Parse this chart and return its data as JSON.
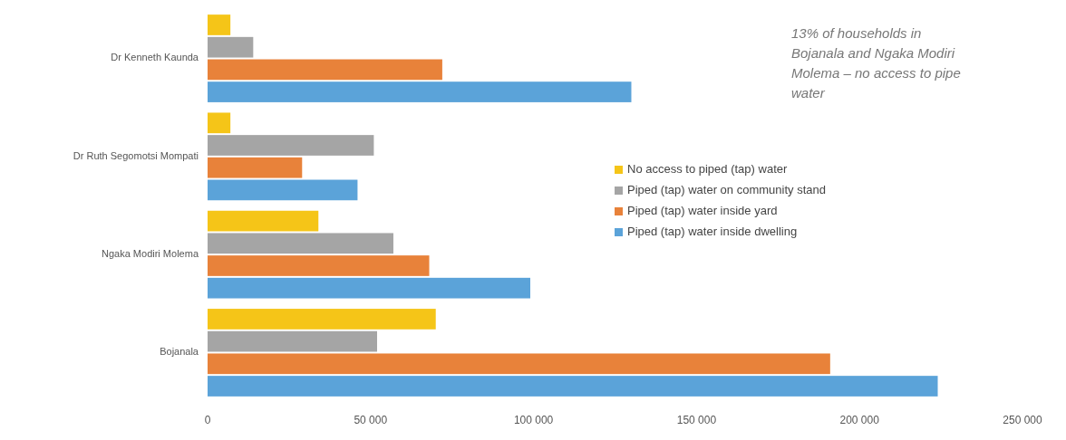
{
  "chart_data": {
    "type": "bar",
    "orientation": "horizontal",
    "categories": [
      "Dr Kenneth Kaunda",
      "Dr Ruth Segomotsi Mompati",
      "Ngaka Modiri Molema",
      "Bojanala"
    ],
    "series": [
      {
        "name": "No access to piped (tap) water",
        "color": "#f5c518",
        "values": [
          7000,
          7000,
          34000,
          70000
        ]
      },
      {
        "name": "Piped (tap) water on community stand",
        "color": "#a5a5a5",
        "values": [
          14000,
          51000,
          57000,
          52000
        ]
      },
      {
        "name": "Piped (tap) water inside yard",
        "color": "#e8823a",
        "values": [
          72000,
          29000,
          68000,
          191000
        ]
      },
      {
        "name": "Piped (tap) water inside dwelling",
        "color": "#5ba3d9",
        "values": [
          130000,
          46000,
          99000,
          224000
        ]
      }
    ],
    "xlim": [
      0,
      250000
    ],
    "xticks": [
      0,
      {
        "value": 50000,
        "label": "50 000"
      },
      {
        "value": 100000,
        "label": "100 000"
      },
      {
        "value": 150000,
        "label": "150 000"
      },
      {
        "value": 200000,
        "label": "200 000"
      },
      {
        "value": 250000,
        "label": "250 000"
      }
    ],
    "legend": "right",
    "grid": false,
    "annotations": [
      "13% of households in Bojanala and Ngaka Modiri Molema – no access to pipe water"
    ]
  }
}
